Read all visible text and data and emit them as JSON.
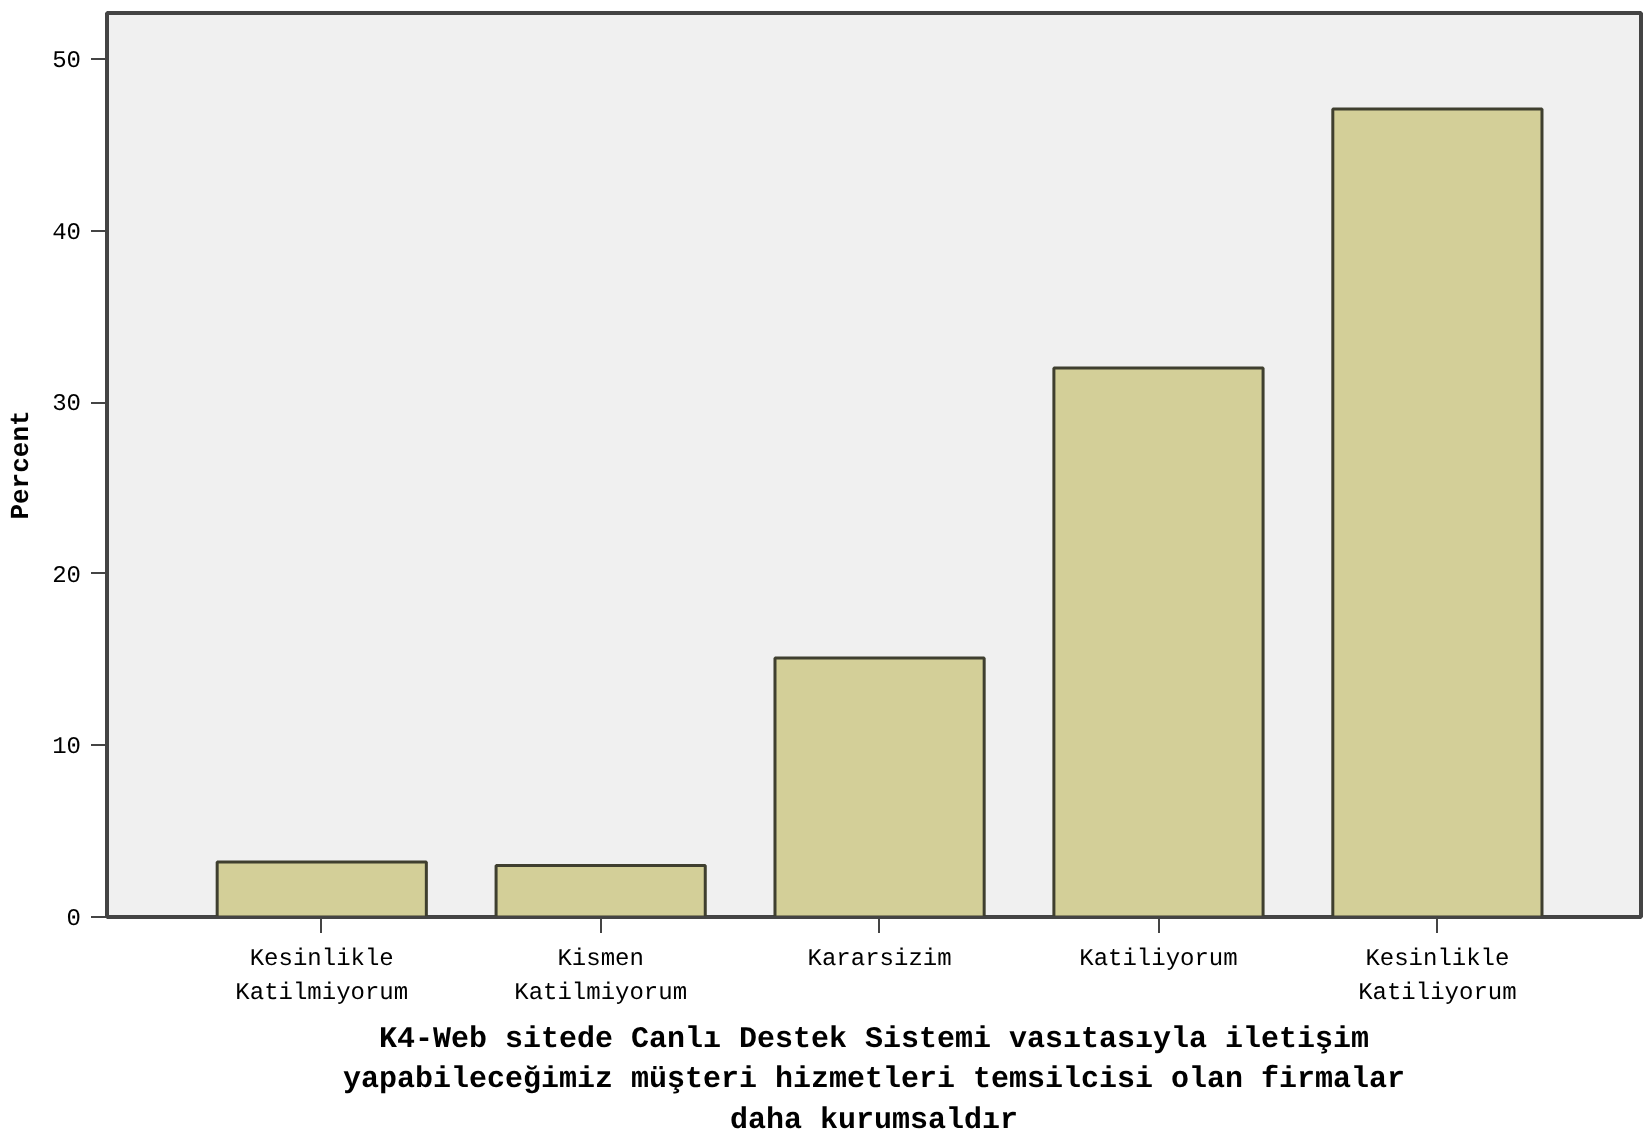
{
  "chart_data": {
    "type": "bar",
    "categories": [
      "Kesinlikle Katilmiyorum",
      "Kismen Katilmiyorum",
      "Kararsizim",
      "Katiliyorum",
      "Kesinlikle Katiliyorum"
    ],
    "values": [
      3.2,
      3.0,
      15.1,
      32.0,
      47.1
    ],
    "color": "#d3cf98",
    "ylabel": "Percent",
    "xlabel": "K4-Web sitede Canlı Destek Sistemi vasıtasıyla iletişim yapabileceğimiz müşteri hizmetleri temsilcisi olan firmalar daha kurumsaldır",
    "ylim": [
      0,
      52.7
    ],
    "yticks": [
      0,
      10,
      20,
      30,
      40,
      50
    ],
    "grid": false
  }
}
